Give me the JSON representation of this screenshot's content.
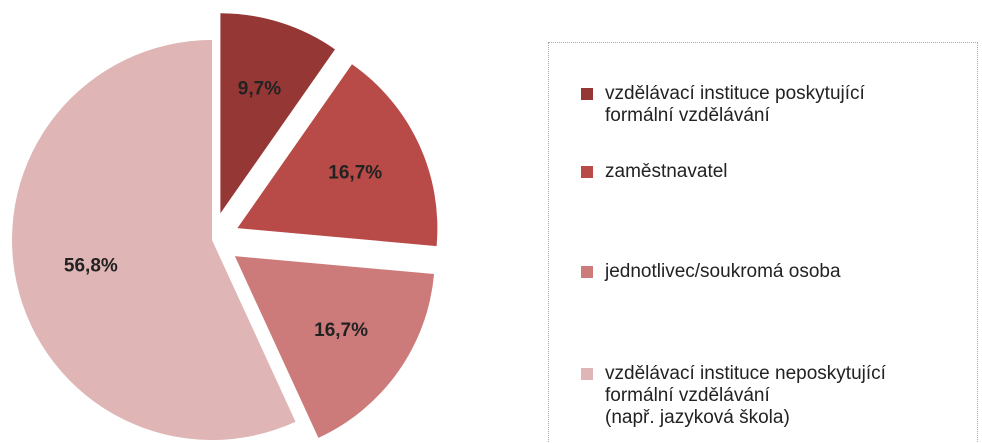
{
  "chart_data": {
    "type": "pie",
    "categories": [
      "vzdělávací instituce poskytující\nformální vzdělávání",
      "zaměstnavatel",
      "jednotlivec/soukromá osoba",
      "vzdělávací instituce neposkytující\nformální vzdělávání\n(např. jazyková škola)"
    ],
    "values": [
      9.7,
      16.7,
      16.7,
      56.8
    ],
    "value_labels": [
      "9,7%",
      "16,7%",
      "16,7%",
      "56,8%"
    ],
    "colors": [
      "#953735",
      "#b84a48",
      "#cc7b7a",
      "#dfb5b5"
    ]
  }
}
